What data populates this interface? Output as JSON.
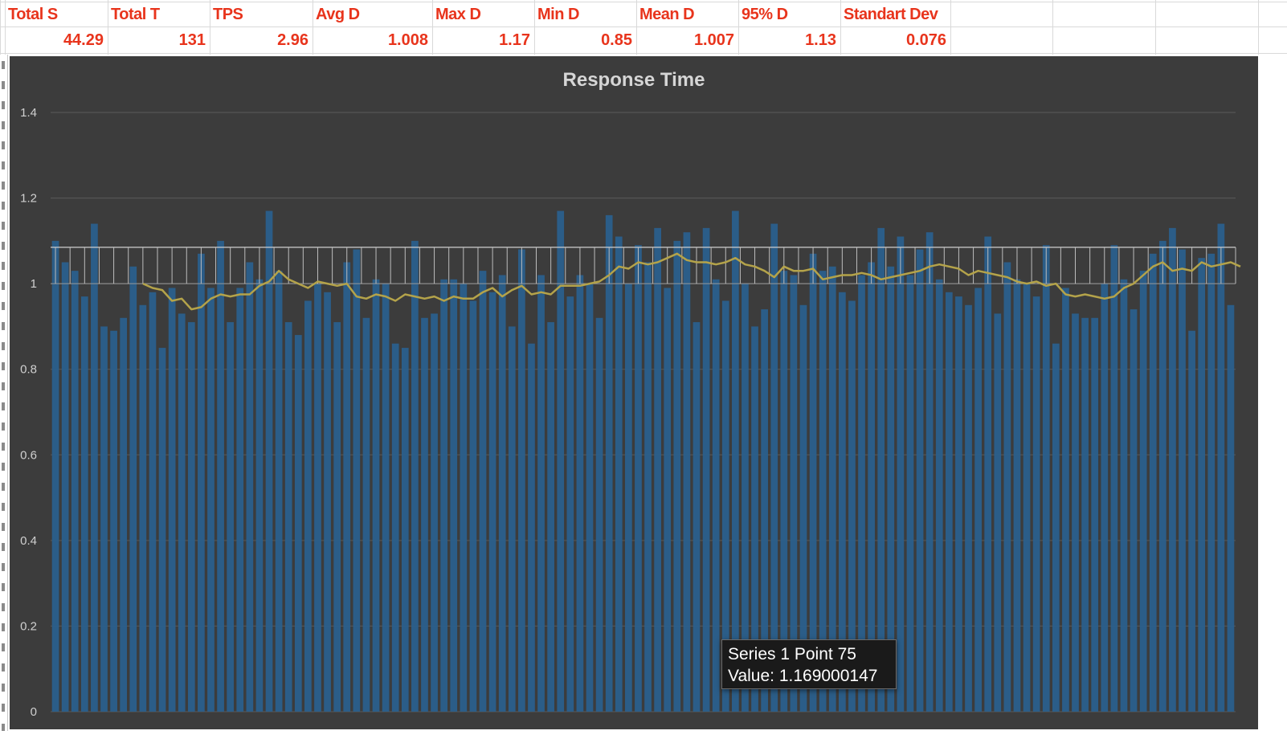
{
  "stats": {
    "headers": [
      "Total S",
      "Total T",
      "TPS",
      "Avg D",
      "Max D",
      "Min D",
      "Mean D",
      "95% D",
      "Standart Dev"
    ],
    "values": [
      "44.29",
      "131",
      "2.96",
      "1.008",
      "1.17",
      "0.85",
      "1.007",
      "1.13",
      "0.076"
    ]
  },
  "tooltip": {
    "line1": "Series 1 Point 75",
    "line2": "Value: 1.169000147"
  },
  "colors": {
    "chart_bg": "#3c3c3c",
    "bar": "#2a5f8c",
    "line": "#b4a34a",
    "text_red": "#e8341c",
    "grid": "#5a5a5a"
  },
  "chart_data": {
    "type": "bar",
    "title": "Response Time",
    "xlabel": "",
    "ylabel": "",
    "ylim": [
      0,
      1.4
    ],
    "yticks": [
      "0",
      "0.2",
      "0.4",
      "0.6",
      "0.8",
      "1",
      "1.2",
      "1.4"
    ],
    "grid": true,
    "legend": "none",
    "series": [
      {
        "type": "bar",
        "values": [
          1.1,
          1.05,
          1.03,
          0.97,
          1.14,
          0.9,
          0.89,
          0.92,
          1.04,
          0.95,
          0.98,
          0.85,
          0.99,
          0.93,
          0.91,
          1.07,
          0.99,
          1.1,
          0.91,
          0.99,
          1.05,
          1.01,
          1.17,
          1.03,
          0.91,
          0.88,
          0.96,
          1.0,
          0.98,
          0.91,
          1.05,
          1.08,
          0.92,
          1.01,
          1.0,
          0.86,
          0.85,
          1.1,
          0.92,
          0.93,
          1.01,
          1.01,
          1.0,
          0.96,
          1.03,
          0.98,
          1.02,
          0.9,
          1.08,
          0.86,
          1.02,
          0.91,
          1.17,
          0.97,
          1.02,
          1.0,
          0.92,
          1.16,
          1.11,
          1.0,
          1.09,
          1.05,
          1.13,
          0.99,
          1.1,
          1.12,
          0.91,
          1.13,
          1.01,
          0.96,
          1.17,
          1.0,
          0.9,
          0.94,
          1.14,
          1.03,
          1.02,
          0.95,
          1.07,
          1.03,
          1.04,
          0.98,
          0.96,
          1.02,
          1.05,
          1.13,
          1.04,
          1.11,
          1.02,
          1.08,
          1.12,
          1.01,
          0.98,
          0.97,
          0.95,
          0.99,
          1.11,
          0.93,
          1.05,
          1.01,
          1.0,
          0.97,
          1.09,
          0.86,
          0.99,
          0.93,
          0.92,
          0.92,
          1.0,
          1.09,
          1.01,
          0.94,
          1.03,
          1.07,
          1.1,
          1.13,
          1.08,
          0.89,
          1.06,
          1.07,
          1.14,
          0.95
        ]
      },
      {
        "type": "line",
        "values": [
          null,
          null,
          null,
          null,
          null,
          null,
          null,
          null,
          null,
          1.0,
          0.99,
          0.985,
          0.96,
          0.965,
          0.94,
          0.945,
          0.965,
          0.975,
          0.97,
          0.975,
          0.975,
          0.995,
          1.005,
          1.03,
          1.01,
          1.0,
          0.99,
          1.005,
          1.0,
          0.995,
          1.0,
          0.97,
          0.965,
          0.975,
          0.97,
          0.96,
          0.975,
          0.97,
          0.965,
          0.97,
          0.96,
          0.97,
          0.965,
          0.965,
          0.98,
          0.99,
          0.97,
          0.985,
          0.995,
          0.975,
          0.98,
          0.975,
          0.995,
          0.995,
          0.995,
          1.0,
          1.005,
          1.02,
          1.04,
          1.035,
          1.05,
          1.045,
          1.05,
          1.06,
          1.07,
          1.055,
          1.05,
          1.05,
          1.045,
          1.05,
          1.06,
          1.045,
          1.04,
          1.03,
          1.015,
          1.04,
          1.03,
          1.03,
          1.035,
          1.01,
          1.015,
          1.02,
          1.02,
          1.025,
          1.02,
          1.01,
          1.015,
          1.02,
          1.025,
          1.03,
          1.04,
          1.045,
          1.04,
          1.035,
          1.02,
          1.03,
          1.025,
          1.02,
          1.015,
          1.005,
          1.0,
          1.005,
          0.995,
          1.0,
          0.975,
          0.97,
          0.975,
          0.97,
          0.965,
          0.97,
          0.99,
          1.0,
          1.02,
          1.04,
          1.05,
          1.03,
          1.035,
          1.03,
          1.05,
          1.04,
          1.045,
          1.05,
          1.04
        ]
      }
    ],
    "band": {
      "from": 1.0,
      "to": 1.085
    }
  }
}
